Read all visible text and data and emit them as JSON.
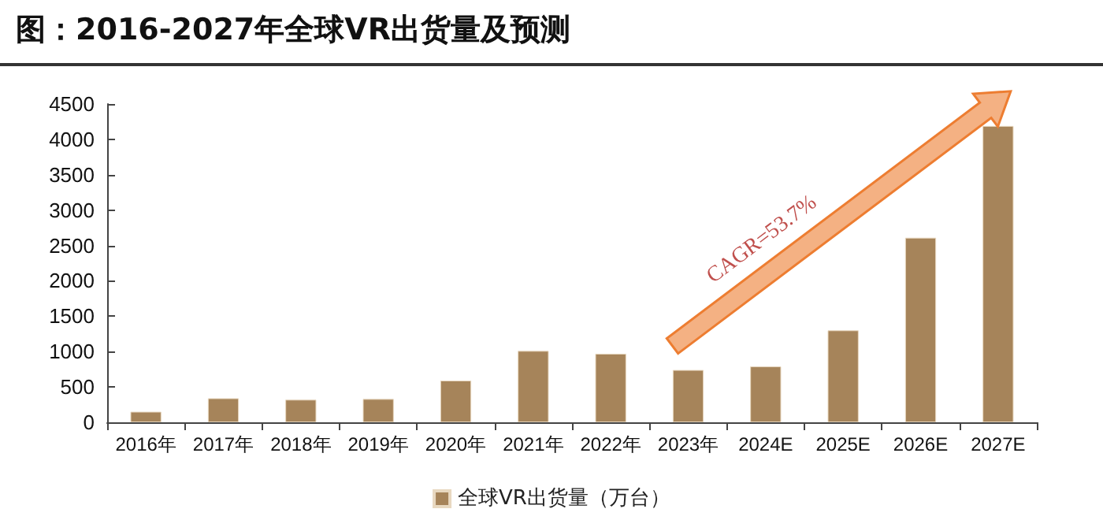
{
  "chart_data": {
    "type": "bar",
    "title": "图：2016-2027年全球VR出货量及预测",
    "categories": [
      "2016年",
      "2017年",
      "2018年",
      "2019年",
      "2020年",
      "2021年",
      "2022年",
      "2023年",
      "2024E",
      "2025E",
      "2026E",
      "2027E"
    ],
    "series": [
      {
        "name": "全球VR出货量（万台）",
        "color": "#a6845a",
        "values": [
          150,
          340,
          320,
          330,
          590,
          1010,
          970,
          740,
          790,
          1300,
          2610,
          4190
        ]
      }
    ],
    "ylim": [
      0,
      4500
    ],
    "yticks": [
      0,
      500,
      1000,
      1500,
      2000,
      2500,
      3000,
      3500,
      4000,
      4500
    ],
    "grid": false,
    "legend": "bottom",
    "annotations": [
      "CAGR=53.7%"
    ]
  }
}
